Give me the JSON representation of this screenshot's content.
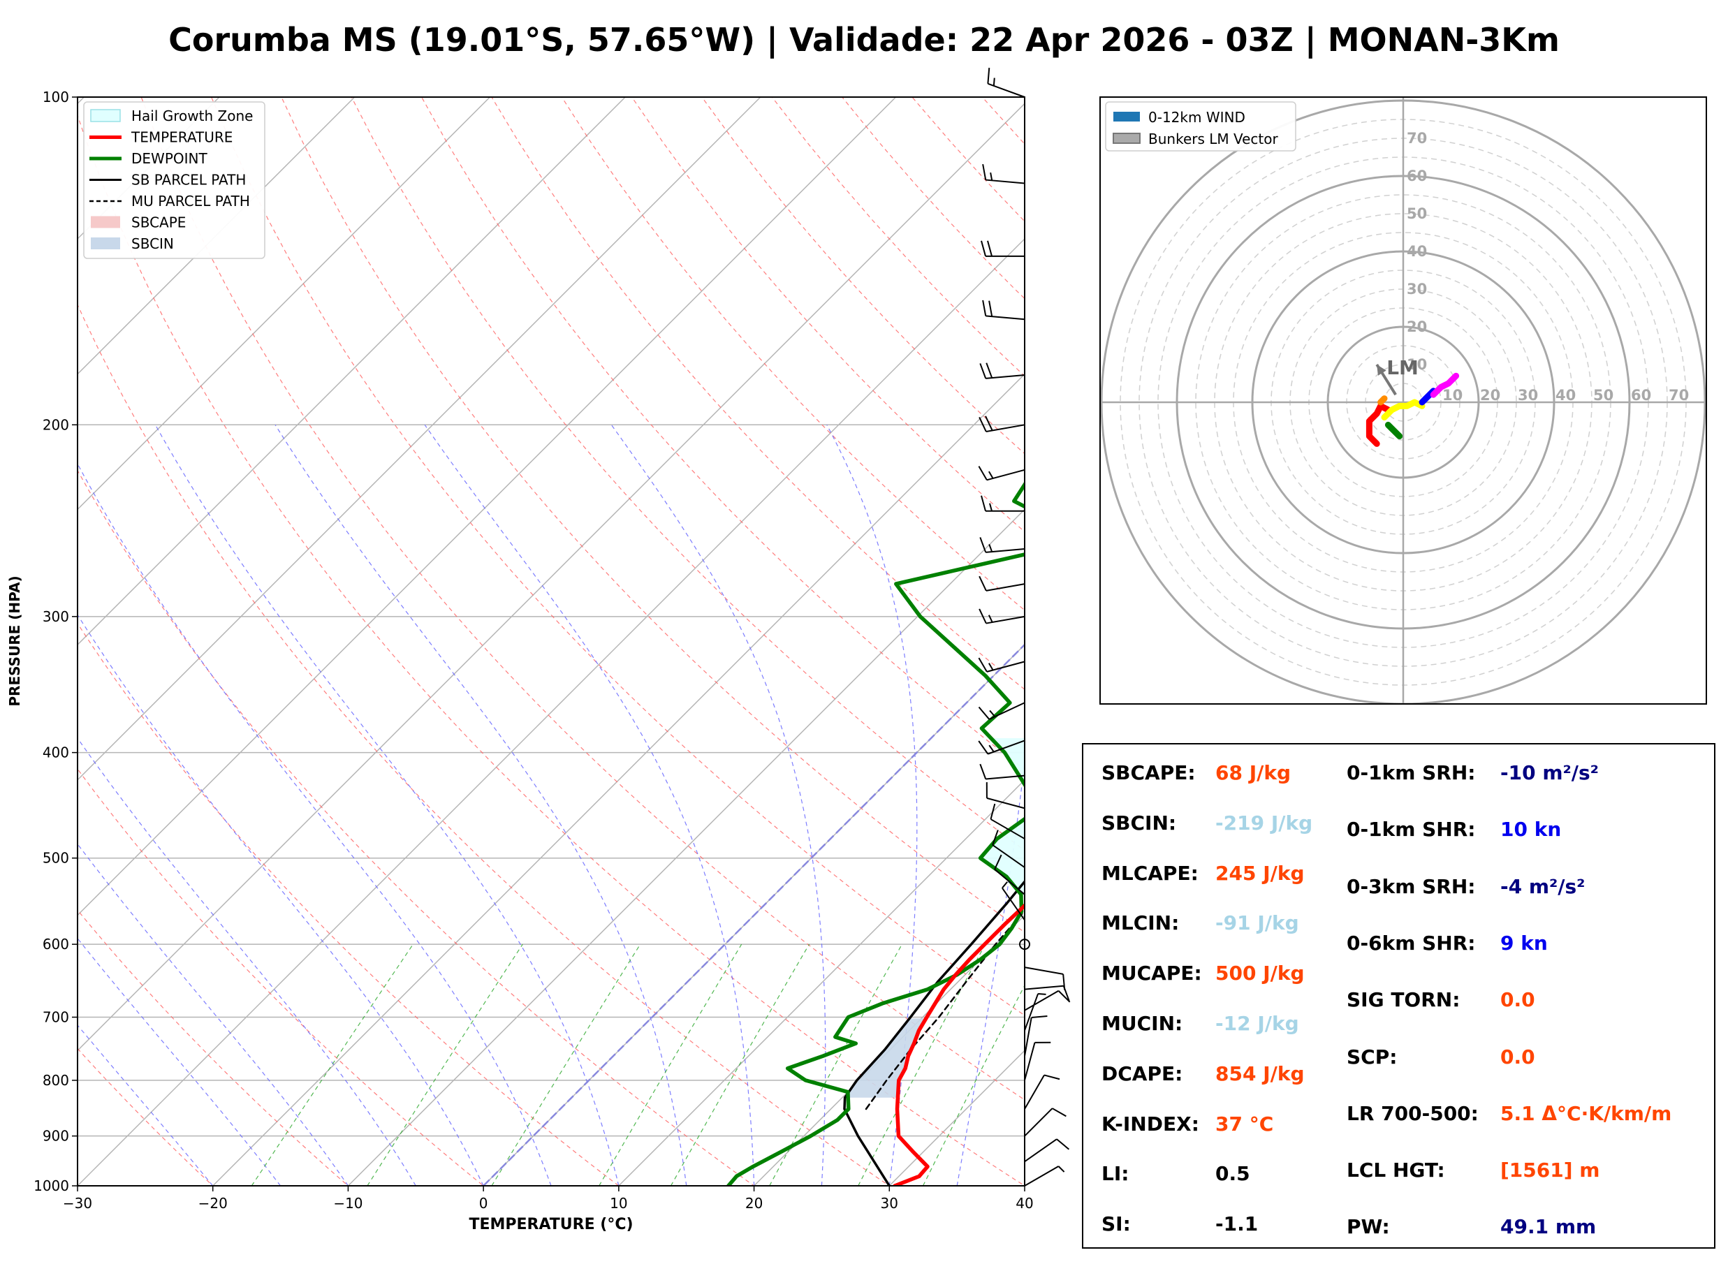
{
  "title": "Corumba MS (19.01°S, 57.65°W) | Validade: 22 Apr 2026 - 03Z | MONAN-3Km",
  "colors": {
    "temperature": "#ff0000",
    "dewpoint": "#008000",
    "sb_parcel": "#000000",
    "mu_parcel": "#000000",
    "hail_zone": "#e0ffff",
    "sbcape": "#f6c9c9",
    "sbcin": "#c8d8ea",
    "dry_adiabat": "#ff6666",
    "moist_adiabat": "#6666ff",
    "mixing_ratio": "#33aa33",
    "value_red": "#ff4500",
    "value_lightblue": "#a6d4e6",
    "value_navy": "#000080",
    "value_blue": "#0000ee",
    "value_black": "#000000"
  },
  "chart_data": [
    {
      "type": "line",
      "subtype": "skew-t log-p sounding",
      "xlabel": "TEMPERATURE (°C)",
      "ylabel": "PRESSURE (HPA)",
      "xlim": [
        -30,
        40
      ],
      "ylim": [
        1000,
        100
      ],
      "y_scale": "log",
      "x_ticks": [
        "−30",
        "−20",
        "−10",
        "0",
        "10",
        "20",
        "30",
        "40"
      ],
      "y_ticks": [
        "100",
        "200",
        "300",
        "400",
        "500",
        "600",
        "700",
        "800",
        "900",
        "1000"
      ],
      "grid": true,
      "legend_position": "top-left",
      "legend": [
        "Hail Growth Zone",
        "TEMPERATURE",
        "DEWPOINT",
        "SB PARCEL PATH",
        "MU PARCEL PATH",
        "SBCAPE",
        "SBCIN"
      ],
      "series": [
        {
          "name": "TEMPERATURE",
          "points": [
            [
              1000,
              30.4
            ],
            [
              980,
              31.5
            ],
            [
              960,
              31.4
            ],
            [
              930,
              29.2
            ],
            [
              900,
              27.0
            ],
            [
              850,
              24.9
            ],
            [
              800,
              22.9
            ],
            [
              780,
              22.5
            ],
            [
              760,
              21.8
            ],
            [
              740,
              21.3
            ],
            [
              720,
              20.7
            ],
            [
              700,
              20.3
            ],
            [
              680,
              19.9
            ],
            [
              660,
              19.5
            ],
            [
              640,
              19.3
            ],
            [
              620,
              19.2
            ],
            [
              600,
              19.2
            ],
            [
              575,
              19.2
            ],
            [
              550,
              19.3
            ],
            [
              525,
              19.5
            ],
            [
              500,
              19.6
            ],
            [
              450,
              18.4
            ],
            [
              400,
              16.8
            ],
            [
              350,
              15.5
            ],
            [
              300,
              13.0
            ],
            [
              275,
              11.5
            ],
            [
              250,
              10.6
            ],
            [
              225,
              9.4
            ],
            [
              200,
              7.0
            ],
            [
              175,
              4.8
            ],
            [
              160,
              4.0
            ],
            [
              150,
              3.6
            ],
            [
              140,
              4.8
            ],
            [
              130,
              6.3
            ],
            [
              120,
              7.4
            ],
            [
              100,
              9.3
            ]
          ]
        },
        {
          "name": "DEWPOINT",
          "points": [
            [
              1000,
              18.1
            ],
            [
              980,
              18.0
            ],
            [
              960,
              18.5
            ],
            [
              930,
              19.5
            ],
            [
              900,
              20.5
            ],
            [
              870,
              21.3
            ],
            [
              850,
              21.3
            ],
            [
              820,
              20.0
            ],
            [
              800,
              16.0
            ],
            [
              780,
              13.8
            ],
            [
              760,
              15.5
            ],
            [
              740,
              17.0
            ],
            [
              730,
              15.0
            ],
            [
              700,
              14.5
            ],
            [
              680,
              16.0
            ],
            [
              660,
              18.3
            ],
            [
              640,
              19.4
            ],
            [
              620,
              20.0
            ],
            [
              600,
              20.3
            ],
            [
              580,
              20.0
            ],
            [
              560,
              19.5
            ],
            [
              540,
              18.2
            ],
            [
              520,
              15.8
            ],
            [
              500,
              12.5
            ],
            [
              480,
              12.3
            ],
            [
              450,
              13.2
            ],
            [
              400,
              6.5
            ],
            [
              380,
              3.0
            ],
            [
              360,
              3.2
            ],
            [
              340,
              -0.6
            ],
            [
              300,
              -9.8
            ],
            [
              280,
              -14.0
            ],
            [
              255,
              -3.0
            ],
            [
              235,
              -11.4
            ],
            [
              215,
              -12.5
            ],
            [
              200,
              -15.0
            ],
            [
              185,
              -16.2
            ],
            [
              170,
              -16.5
            ],
            [
              155,
              -17.6
            ],
            [
              140,
              -17.0
            ],
            [
              125,
              -19.8
            ],
            [
              100,
              -18.5
            ]
          ]
        },
        {
          "name": "SB PARCEL PATH",
          "points": [
            [
              1000,
              30.0
            ],
            [
              900,
              24.0
            ],
            [
              850,
              21.0
            ],
            [
              830,
              20.2
            ],
            [
              800,
              19.8
            ],
            [
              750,
              19.6
            ],
            [
              700,
              19.1
            ],
            [
              650,
              18.5
            ],
            [
              600,
              18.2
            ],
            [
              550,
              17.8
            ],
            [
              500,
              17.2
            ],
            [
              450,
              15.8
            ],
            [
              400,
              13.8
            ],
            [
              350,
              11.3
            ],
            [
              300,
              7.9
            ],
            [
              250,
              3.7
            ],
            [
              200,
              -1.8
            ],
            [
              150,
              -8.8
            ],
            [
              120,
              -14.0
            ],
            [
              100,
              -17.6
            ]
          ]
        },
        {
          "name": "MU PARCEL PATH",
          "points": [
            [
              850,
              22.6
            ],
            [
              800,
              22.0
            ],
            [
              750,
              21.5
            ],
            [
              700,
              21.2
            ],
            [
              650,
              20.6
            ],
            [
              600,
              20.0
            ],
            [
              550,
              19.6
            ],
            [
              500,
              19.3
            ],
            [
              450,
              18.0
            ],
            [
              400,
              16.3
            ],
            [
              350,
              13.8
            ],
            [
              300,
              10.5
            ],
            [
              250,
              6.3
            ],
            [
              200,
              0.8
            ],
            [
              150,
              -5.8
            ],
            [
              120,
              -10.8
            ],
            [
              100,
              -14.5
            ]
          ]
        },
        {
          "name": "Hail Growth Zone",
          "pressure_range": [
            540,
            388
          ]
        }
      ]
    },
    {
      "type": "scatter",
      "subtype": "hodograph",
      "rlim": [
        0,
        75
      ],
      "rings": [
        "10",
        "20",
        "30",
        "40",
        "50",
        "60",
        "70"
      ],
      "legend_position": "top-left",
      "legend": [
        "0-12km WIND",
        "Bunkers LM Vector"
      ],
      "lm_label": "LM",
      "bunkers_lm_vector": [
        -7,
        10
      ],
      "series": [
        {
          "name": "0-1km",
          "color": "#ff0000",
          "u": [
            -4,
            -6,
            -7,
            -9,
            -9,
            -9,
            -8,
            -7
          ],
          "v": [
            -2,
            -1,
            -3,
            -5,
            -7,
            -9,
            -10,
            -11
          ]
        },
        {
          "name": "1-3km",
          "color": "#ff8c00",
          "u": [
            -5,
            -6
          ],
          "v": [
            1,
            0
          ]
        },
        {
          "name": "3-6km",
          "color": "#008000",
          "u": [
            -4,
            -3,
            -2,
            -1
          ],
          "v": [
            -6,
            -7,
            -8,
            -9
          ]
        },
        {
          "name": "6-9km",
          "color": "#ffff00",
          "u": [
            -5,
            -3,
            -1,
            1,
            3,
            5
          ],
          "v": [
            -4,
            -2,
            -1,
            -1,
            0,
            -1
          ]
        },
        {
          "name": "9-12km",
          "color": "#0000ff",
          "u": [
            5,
            6,
            7,
            8
          ],
          "v": [
            0,
            1,
            2,
            3
          ]
        },
        {
          "name": "12km+",
          "color": "#ff00ff",
          "u": [
            8,
            10,
            12,
            14
          ],
          "v": [
            2,
            4,
            5,
            7
          ]
        }
      ]
    }
  ],
  "indices": [
    {
      "label": "SBCAPE:",
      "value": "68 J/kg",
      "color": "#ff4500"
    },
    {
      "label": "SBCIN:",
      "value": "-219 J/kg",
      "color": "#a6d4e6"
    },
    {
      "label": "MLCAPE:",
      "value": "245 J/kg",
      "color": "#ff4500"
    },
    {
      "label": "MLCIN:",
      "value": "-91 J/kg",
      "color": "#a6d4e6"
    },
    {
      "label": "MUCAPE:",
      "value": "500 J/kg",
      "color": "#ff4500"
    },
    {
      "label": "MUCIN:",
      "value": "-12 J/kg",
      "color": "#a6d4e6"
    },
    {
      "label": "DCAPE:",
      "value": "854 J/kg",
      "color": "#ff4500"
    },
    {
      "label": "K-INDEX:",
      "value": "37 °C",
      "color": "#ff4500"
    },
    {
      "label": "LI:",
      "value": "0.5",
      "color": "#000000"
    },
    {
      "label": "SI:",
      "value": "-1.1",
      "color": "#000000"
    },
    {
      "label": "0-1km SRH:",
      "value": "-10 m²/s²",
      "color": "#000080"
    },
    {
      "label": "0-1km SHR:",
      "value": "10 kn",
      "color": "#0000ee"
    },
    {
      "label": "0-3km SRH:",
      "value": "-4 m²/s²",
      "color": "#000080"
    },
    {
      "label": "0-6km SHR:",
      "value": "9 kn",
      "color": "#0000ee"
    },
    {
      "label": "SIG TORN:",
      "value": "0.0",
      "color": "#ff4500"
    },
    {
      "label": "SCP:",
      "value": "0.0",
      "color": "#ff4500"
    },
    {
      "label": "LR 700-500:",
      "value": "5.1 Δ°C·K/km/m",
      "color": "#ff4500"
    },
    {
      "label": "LCL HGT:",
      "value": "[1561] m",
      "color": "#ff4500"
    },
    {
      "label": "PW:",
      "value": "49.1 mm",
      "color": "#000080"
    }
  ],
  "wind_barbs": [
    [
      100,
      290,
      15
    ],
    [
      120,
      275,
      15
    ],
    [
      140,
      270,
      20
    ],
    [
      160,
      275,
      20
    ],
    [
      180,
      265,
      20
    ],
    [
      200,
      260,
      20
    ],
    [
      220,
      255,
      15
    ],
    [
      240,
      270,
      15
    ],
    [
      260,
      265,
      15
    ],
    [
      280,
      260,
      10
    ],
    [
      300,
      260,
      15
    ],
    [
      330,
      255,
      15
    ],
    [
      360,
      245,
      15
    ],
    [
      390,
      250,
      15
    ],
    [
      420,
      265,
      10
    ],
    [
      450,
      285,
      10
    ],
    [
      480,
      300,
      10
    ],
    [
      510,
      305,
      10
    ],
    [
      540,
      310,
      10
    ],
    [
      570,
      325,
      5
    ],
    [
      600,
      0,
      0
    ],
    [
      630,
      100,
      10
    ],
    [
      660,
      85,
      10
    ],
    [
      690,
      60,
      10
    ],
    [
      720,
      20,
      5
    ],
    [
      760,
      10,
      10
    ],
    [
      800,
      15,
      10
    ],
    [
      850,
      30,
      10
    ],
    [
      900,
      45,
      10
    ],
    [
      950,
      55,
      10
    ],
    [
      1000,
      60,
      5
    ]
  ]
}
